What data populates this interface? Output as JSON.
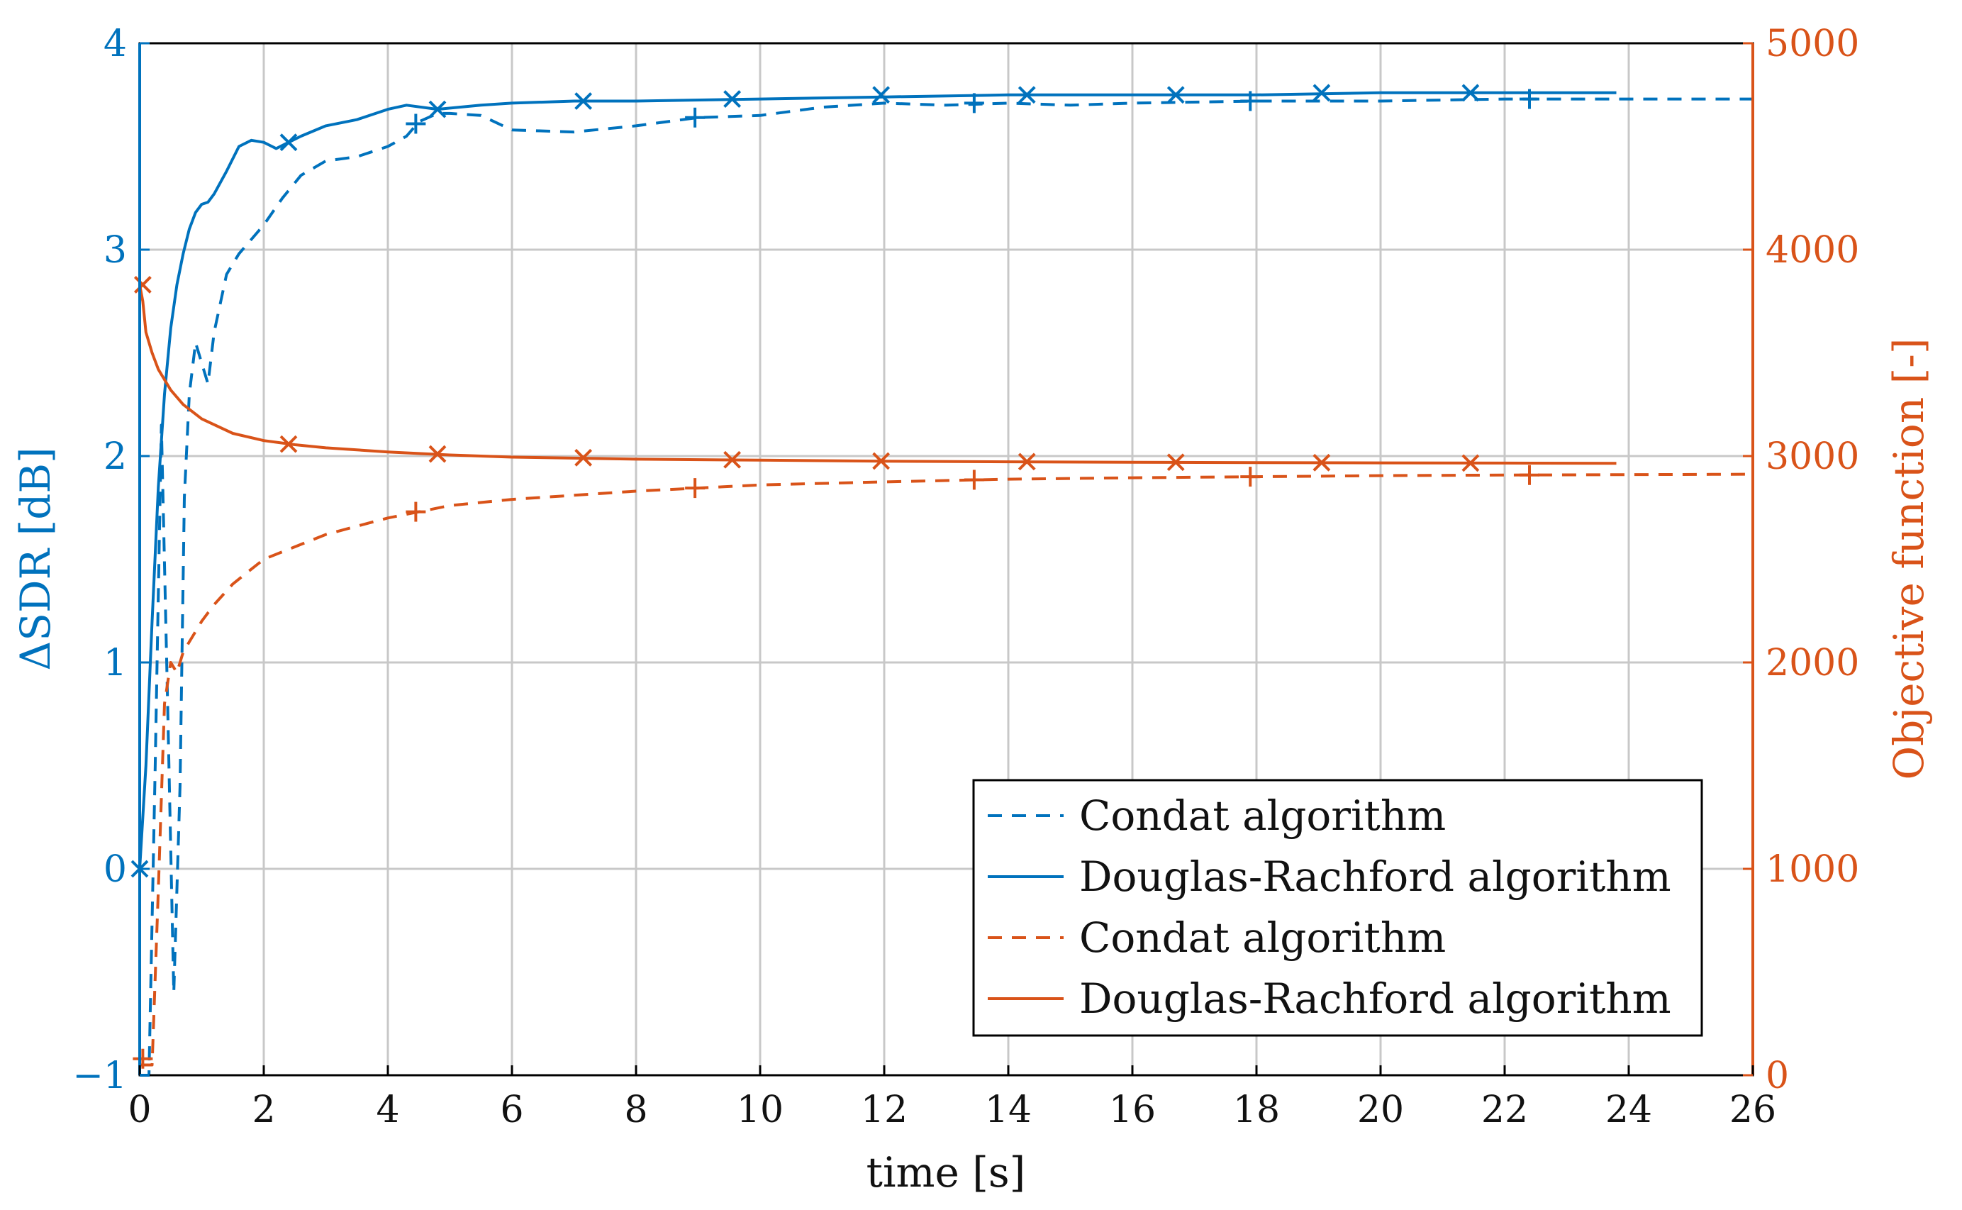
{
  "chart_data": {
    "type": "line",
    "title": "",
    "xlabel": "time [s]",
    "ylabel_left": "ΔSDR [dB]",
    "ylabel_right": "Objective function [-]",
    "xlim": [
      0,
      26
    ],
    "ylim_left": [
      -1,
      4
    ],
    "ylim_right": [
      0,
      5000
    ],
    "x_ticks": [
      "0",
      "2",
      "4",
      "6",
      "8",
      "10",
      "12",
      "14",
      "16",
      "18",
      "20",
      "22",
      "24",
      "26"
    ],
    "y_ticks_left": [
      "−1",
      "0",
      "1",
      "2",
      "3",
      "4"
    ],
    "y_ticks_right": [
      "0",
      "1000",
      "2000",
      "3000",
      "4000",
      "5000"
    ],
    "grid": true,
    "legend_position": "bottom-right",
    "colors": {
      "blue": "#0072bd",
      "orange": "#d95319"
    },
    "series": [
      {
        "name": "Condat algorithm",
        "axis": "left",
        "color": "#0072bd",
        "style": "dashed",
        "marker": "+",
        "x": [
          0,
          0.15,
          0.25,
          0.35,
          0.45,
          0.55,
          0.65,
          0.72,
          0.8,
          0.9,
          1.0,
          1.1,
          1.2,
          1.4,
          1.6,
          1.8,
          2.0,
          2.3,
          2.6,
          3.0,
          3.5,
          4.0,
          4.3,
          4.5,
          4.8,
          5.0,
          5.5,
          6.0,
          7.0,
          8.0,
          9.0,
          10.0,
          11.0,
          12.0,
          13.0,
          14.0,
          15.0,
          16.0,
          18.0,
          20.0,
          22.0,
          24.0,
          26.0
        ],
        "values": [
          -1.0,
          -1.0,
          0.5,
          2.15,
          0.8,
          -0.6,
          0.4,
          1.8,
          2.3,
          2.55,
          2.45,
          2.35,
          2.6,
          2.88,
          2.98,
          3.05,
          3.12,
          3.25,
          3.36,
          3.43,
          3.45,
          3.5,
          3.55,
          3.62,
          3.66,
          3.66,
          3.65,
          3.58,
          3.57,
          3.6,
          3.64,
          3.65,
          3.69,
          3.71,
          3.7,
          3.71,
          3.7,
          3.71,
          3.72,
          3.72,
          3.73,
          3.73,
          3.73
        ],
        "markers_x": [
          4.45,
          8.95,
          13.45,
          17.9,
          22.4
        ],
        "markers_y": [
          3.61,
          3.64,
          3.71,
          3.72,
          3.73
        ]
      },
      {
        "name": "Douglas-Rachford algorithm",
        "axis": "left",
        "color": "#0072bd",
        "style": "solid",
        "marker": "x",
        "x": [
          0,
          0.1,
          0.2,
          0.3,
          0.4,
          0.5,
          0.6,
          0.7,
          0.8,
          0.9,
          1.0,
          1.1,
          1.2,
          1.4,
          1.6,
          1.8,
          2.0,
          2.2,
          2.4,
          2.6,
          3.0,
          3.5,
          4.0,
          4.3,
          4.8,
          5.5,
          6.0,
          7.0,
          8.0,
          10.0,
          12.0,
          14.0,
          16.0,
          18.0,
          20.0,
          22.0,
          23.8
        ],
        "values": [
          0.0,
          0.5,
          1.2,
          1.85,
          2.3,
          2.62,
          2.83,
          2.98,
          3.1,
          3.18,
          3.22,
          3.23,
          3.27,
          3.38,
          3.5,
          3.53,
          3.52,
          3.49,
          3.52,
          3.55,
          3.6,
          3.63,
          3.68,
          3.7,
          3.68,
          3.7,
          3.71,
          3.72,
          3.72,
          3.73,
          3.74,
          3.75,
          3.75,
          3.75,
          3.76,
          3.76,
          3.76
        ],
        "markers_x": [
          0,
          2.4,
          4.8,
          7.15,
          9.55,
          11.95,
          14.3,
          16.7,
          19.05,
          21.45
        ],
        "markers_y": [
          0.0,
          3.52,
          3.68,
          3.72,
          3.73,
          3.75,
          3.75,
          3.75,
          3.76,
          3.76
        ]
      },
      {
        "name": "Condat algorithm",
        "axis": "right",
        "color": "#d95319",
        "style": "dashed",
        "marker": "+",
        "x": [
          0,
          0.2,
          0.3,
          0.4,
          0.5,
          0.6,
          0.7,
          0.8,
          0.9,
          1.0,
          1.2,
          1.5,
          2.0,
          2.5,
          3.0,
          3.5,
          4.0,
          4.5,
          5.0,
          6.0,
          7.0,
          8.0,
          9.0,
          10.0,
          12.0,
          14.0,
          16.0,
          18.0,
          20.0,
          22.0,
          24.0,
          26.0
        ],
        "values": [
          50,
          50,
          900,
          1800,
          2000,
          1950,
          2050,
          2100,
          2150,
          2200,
          2280,
          2380,
          2500,
          2560,
          2620,
          2660,
          2700,
          2730,
          2760,
          2790,
          2810,
          2830,
          2845,
          2860,
          2875,
          2888,
          2895,
          2900,
          2905,
          2908,
          2910,
          2912
        ],
        "markers_x": [
          0.05,
          4.45,
          8.95,
          13.45,
          17.9,
          22.4
        ],
        "markers_y": [
          80,
          2730,
          2845,
          2885,
          2900,
          2908
        ]
      },
      {
        "name": "Douglas-Rachford algorithm",
        "axis": "right",
        "color": "#d95319",
        "style": "solid",
        "marker": "x",
        "x": [
          0,
          0.05,
          0.1,
          0.2,
          0.3,
          0.5,
          0.7,
          1.0,
          1.5,
          2.0,
          2.5,
          3.0,
          4.0,
          5.0,
          6.0,
          8.0,
          10.0,
          12.0,
          14.0,
          16.0,
          18.0,
          20.0,
          22.0,
          23.8
        ],
        "values": [
          3830,
          3750,
          3600,
          3500,
          3420,
          3320,
          3250,
          3180,
          3110,
          3075,
          3055,
          3040,
          3020,
          3005,
          2995,
          2985,
          2980,
          2975,
          2972,
          2970,
          2968,
          2967,
          2966,
          2965
        ],
        "markers_x": [
          0.05,
          2.4,
          4.8,
          7.15,
          9.55,
          11.95,
          14.3,
          16.7,
          19.05,
          21.45
        ],
        "markers_y": [
          3830,
          3058,
          3010,
          2992,
          2982,
          2976,
          2973,
          2970,
          2968,
          2966
        ]
      }
    ]
  }
}
